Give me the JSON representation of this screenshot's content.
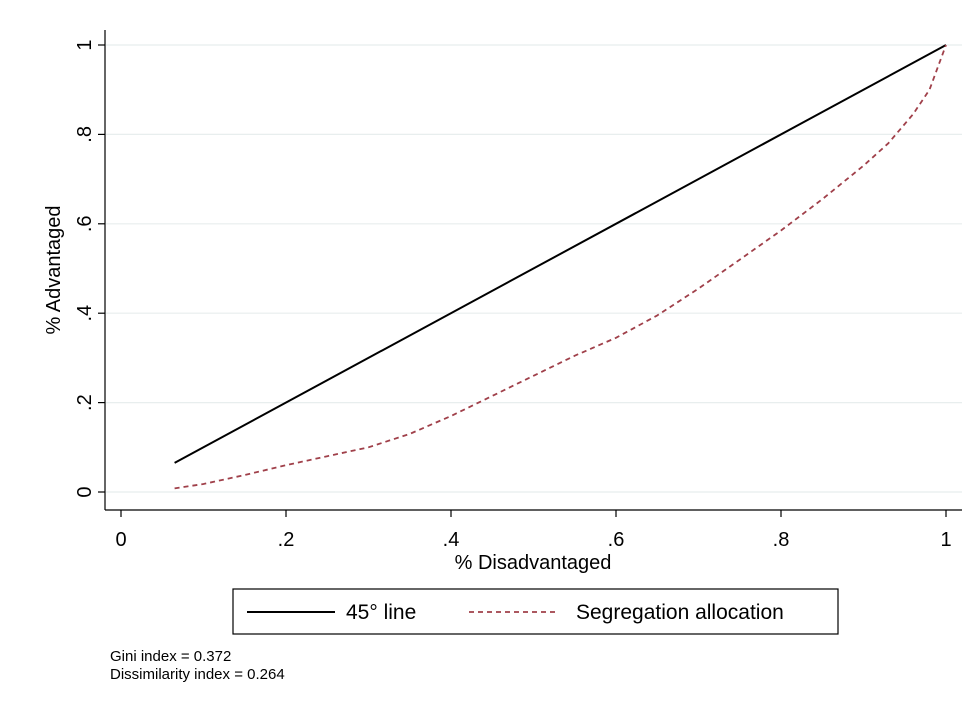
{
  "chart_data": {
    "type": "line",
    "xlabel": "% Disadvantaged",
    "ylabel": "% Advantaged",
    "xlim": [
      0,
      1
    ],
    "ylim": [
      0,
      1
    ],
    "x_ticks": [
      {
        "value": 0,
        "label": "0"
      },
      {
        "value": 0.2,
        "label": ".2"
      },
      {
        "value": 0.4,
        "label": ".4"
      },
      {
        "value": 0.6,
        "label": ".6"
      },
      {
        "value": 0.8,
        "label": ".8"
      },
      {
        "value": 1,
        "label": "1"
      }
    ],
    "y_ticks": [
      {
        "value": 0,
        "label": "0"
      },
      {
        "value": 0.2,
        "label": ".2"
      },
      {
        "value": 0.4,
        "label": ".4"
      },
      {
        "value": 0.6,
        "label": ".6"
      },
      {
        "value": 0.8,
        "label": ".8"
      },
      {
        "value": 1,
        "label": "1"
      }
    ],
    "grid": "horizontal",
    "legend_position": "bottom",
    "series": [
      {
        "name": "45° line",
        "style": "solid",
        "color": "#000000",
        "x": [
          0.065,
          1.0
        ],
        "y": [
          0.065,
          1.0
        ]
      },
      {
        "name": "Segregation allocation",
        "style": "dashed",
        "color": "#a0404a",
        "x": [
          0.065,
          0.1,
          0.15,
          0.2,
          0.25,
          0.3,
          0.35,
          0.4,
          0.45,
          0.5,
          0.55,
          0.6,
          0.65,
          0.7,
          0.75,
          0.8,
          0.85,
          0.9,
          0.93,
          0.96,
          0.98,
          1.0
        ],
        "y": [
          0.008,
          0.018,
          0.038,
          0.06,
          0.08,
          0.1,
          0.13,
          0.17,
          0.215,
          0.26,
          0.305,
          0.345,
          0.395,
          0.455,
          0.52,
          0.585,
          0.655,
          0.73,
          0.78,
          0.845,
          0.9,
          1.0
        ]
      }
    ]
  },
  "notes": {
    "gini_label": "Gini index = ",
    "gini_value": "0.372",
    "dissimilarity_label": "Dissimilarity index = ",
    "dissimilarity_value": "0.264"
  }
}
